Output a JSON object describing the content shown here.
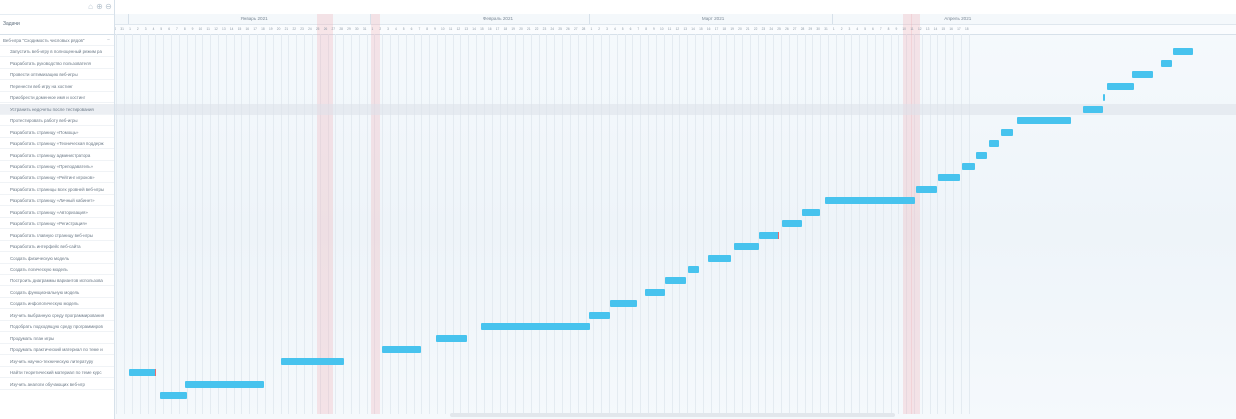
{
  "toolbar": {
    "icons": [
      "home-icon",
      "zoom-in-icon",
      "zoom-out-icon"
    ],
    "icon_glyphs": [
      "⌂",
      "⊕",
      "⊖"
    ]
  },
  "panel": {
    "header_title": "Задачи",
    "root_task": "Веб-игра \"Сходимость числовых рядов\"",
    "highlighted_row": 6,
    "tasks": [
      "Запустить веб-игру в полноценный режим ра",
      "Разработать руководство пользователя",
      "Провести оптимизацию веб-игры",
      "Перенести веб игру на хостинг",
      "Приобрести доменное имя и хостинг",
      "Устранить недочеты после тестирования",
      "Протестировать работу веб-игры",
      "Разработать страницу «Помощь»",
      "Разработать страницу «Техническая поддерж",
      "Разработать страницу администратора",
      "Разработать страницу «Преподаватель»",
      "Разработать страницу «Рейтинг игроков»",
      "Разработать страницы всех уровней веб-игры",
      "Разработать страницу «Личный кабинет»",
      "Разработать страницу «Авторизация»",
      "Разработать страницу «Регистрация»",
      "Разработать главную страницу веб-игры",
      "Разработать интерфейс веб-сайта",
      "Создать физическую модель",
      "Создать логическую модель",
      "Построить диаграммы вариантов использова",
      "Создать функциональную модель",
      "Создать инфологическую модель",
      "Изучить выбранную среду программирования",
      "Подобрать подходящую среду программиров",
      "Продумать план игры",
      "Продумать практический материал по теме и",
      "Изучить научно-техническую литературу",
      "Найти теоретический материал по теме курс",
      "Изучить аналоги обучающих веб-игр"
    ]
  },
  "timeline": {
    "months": [
      {
        "label": "Январь 2021",
        "start_day": 1,
        "days": 31
      },
      {
        "label": "Февраль 2021",
        "start_day": 1,
        "days": 28
      },
      {
        "label": "Март 2021",
        "start_day": 1,
        "days": 31
      },
      {
        "label": "Апрель 2021",
        "start_day": 1,
        "days": 18
      }
    ],
    "lead_days": [
      7,
      8,
      9,
      10,
      11,
      12,
      13,
      14,
      15,
      16,
      17,
      18,
      19,
      20,
      21,
      22,
      23,
      24,
      25,
      26,
      27,
      28,
      29,
      30,
      31
    ],
    "weekend_day_offsets": [
      24,
      25,
      31,
      99,
      100
    ]
  },
  "bars": [
    {
      "row": 1,
      "start": 133.5,
      "end": 136
    },
    {
      "row": 2,
      "start": 132,
      "end": 133.4
    },
    {
      "row": 3,
      "start": 128.3,
      "end": 131
    },
    {
      "row": 4,
      "start": 125,
      "end": 128.5
    },
    {
      "row": 5,
      "start": 124.6,
      "end": 124.8
    },
    {
      "row": 6,
      "start": 122,
      "end": 124.5
    },
    {
      "row": 7,
      "start": 113.5,
      "end": 120.5
    },
    {
      "row": 8,
      "start": 111.5,
      "end": 113
    },
    {
      "row": 9,
      "start": 110,
      "end": 111.3
    },
    {
      "row": 10,
      "start": 108.3,
      "end": 109.7
    },
    {
      "row": 11,
      "start": 106.5,
      "end": 108.2
    },
    {
      "row": 12,
      "start": 103.5,
      "end": 106.3
    },
    {
      "row": 13,
      "start": 100.6,
      "end": 103.3
    },
    {
      "row": 14,
      "start": 89,
      "end": 100.5
    },
    {
      "row": 15,
      "start": 86,
      "end": 88.4
    },
    {
      "row": 16,
      "start": 83.5,
      "end": 86
    },
    {
      "row": 17,
      "start": 80.6,
      "end": 83.1,
      "tick": true
    },
    {
      "row": 18,
      "start": 77.4,
      "end": 80.6
    },
    {
      "row": 19,
      "start": 74,
      "end": 77
    },
    {
      "row": 20,
      "start": 71.5,
      "end": 72.9
    },
    {
      "row": 21,
      "start": 68.5,
      "end": 71.2
    },
    {
      "row": 22,
      "start": 66,
      "end": 68.5
    },
    {
      "row": 23,
      "start": 61.5,
      "end": 65
    },
    {
      "row": 24,
      "start": 58.8,
      "end": 61.5
    },
    {
      "row": 25,
      "start": 45,
      "end": 59
    },
    {
      "row": 26,
      "start": 39.2,
      "end": 43.2
    },
    {
      "row": 27,
      "start": 32.3,
      "end": 37.4
    },
    {
      "row": 28,
      "start": 19.4,
      "end": 27.5
    },
    {
      "row": 29,
      "start": 0,
      "end": 3.4,
      "tick": true
    },
    {
      "row": 30,
      "start": 7.2,
      "end": 17.3
    },
    {
      "row": 31,
      "start": 4,
      "end": 7.4
    }
  ]
}
